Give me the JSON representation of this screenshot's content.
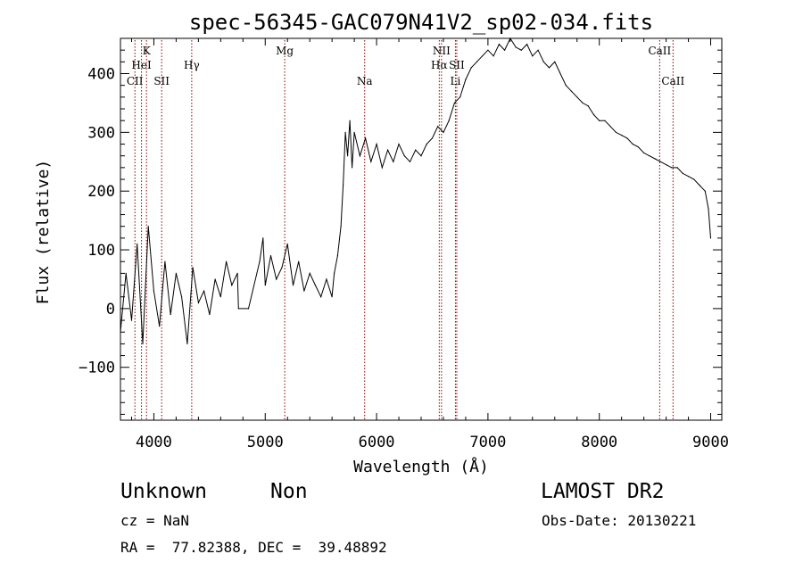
{
  "chart_data": {
    "type": "line",
    "title": "spec-56345-GAC079N41V2_sp02-034.fits",
    "xlabel": "Wavelength (Å)",
    "ylabel": "Flux (relative)",
    "xlim": [
      3700,
      9100
    ],
    "ylim": [
      -190,
      460
    ],
    "xticks": [
      4000,
      5000,
      6000,
      7000,
      8000,
      9000
    ],
    "yticks": [
      -100,
      0,
      100,
      200,
      300,
      400
    ],
    "grid": false,
    "series": [
      {
        "x": [
          3700,
          3750,
          3800,
          3850,
          3900,
          3950,
          4000,
          4050,
          4100,
          4150,
          4200,
          4250,
          4300,
          4350,
          4400,
          4450,
          4500,
          4550,
          4600,
          4650,
          4700,
          4750,
          4760,
          4850,
          4950,
          4980,
          5000,
          5050,
          5100,
          5150,
          5200,
          5250,
          5300,
          5350,
          5400,
          5450,
          5500,
          5550,
          5600,
          5620,
          5650,
          5680,
          5700,
          5720,
          5740,
          5760,
          5780,
          5800,
          5850,
          5900,
          5950,
          6000,
          6050,
          6100,
          6150,
          6200,
          6250,
          6300,
          6350,
          6400,
          6450,
          6500,
          6550,
          6600,
          6650,
          6700,
          6750,
          6800,
          6850,
          6900,
          6950,
          7000,
          7050,
          7100,
          7150,
          7200,
          7250,
          7300,
          7350,
          7400,
          7450,
          7500,
          7550,
          7600,
          7650,
          7700,
          7750,
          7800,
          7850,
          7900,
          7950,
          8000,
          8050,
          8100,
          8150,
          8200,
          8250,
          8300,
          8350,
          8400,
          8450,
          8500,
          8550,
          8600,
          8650,
          8700,
          8750,
          8800,
          8850,
          8900,
          8950,
          8980,
          9000
        ],
        "y": [
          -40,
          60,
          -20,
          110,
          -60,
          140,
          30,
          -30,
          80,
          -10,
          60,
          20,
          -60,
          70,
          10,
          30,
          -10,
          50,
          20,
          80,
          40,
          60,
          0,
          0,
          80,
          120,
          40,
          90,
          50,
          70,
          110,
          40,
          80,
          30,
          60,
          40,
          20,
          50,
          20,
          60,
          90,
          140,
          210,
          300,
          260,
          320,
          240,
          300,
          260,
          290,
          250,
          280,
          240,
          270,
          250,
          280,
          260,
          250,
          270,
          260,
          280,
          290,
          310,
          300,
          320,
          350,
          360,
          390,
          410,
          420,
          430,
          440,
          430,
          450,
          440,
          460,
          445,
          440,
          450,
          430,
          440,
          420,
          410,
          420,
          400,
          380,
          370,
          360,
          350,
          345,
          330,
          320,
          320,
          310,
          300,
          295,
          290,
          280,
          275,
          265,
          260,
          255,
          250,
          245,
          240,
          240,
          230,
          225,
          220,
          210,
          200,
          170,
          120
        ]
      }
    ],
    "lines": [
      {
        "label": "CII",
        "x": 3830,
        "row": 3
      },
      {
        "label": "HeI",
        "x": 3889,
        "row": 2
      },
      {
        "label": "K",
        "x": 3934,
        "row": 1
      },
      {
        "label": "SII",
        "x": 4070,
        "row": 3
      },
      {
        "label": "Hγ",
        "x": 4340,
        "row": 2
      },
      {
        "label": "Mg",
        "x": 5175,
        "row": 1
      },
      {
        "label": "Na",
        "x": 5893,
        "row": 3
      },
      {
        "label": "NII",
        "x": 6583,
        "row": 1
      },
      {
        "label": "Hα",
        "x": 6563,
        "row": 2
      },
      {
        "label": "SII",
        "x": 6720,
        "row": 2
      },
      {
        "label": "Li",
        "x": 6708,
        "row": 3
      },
      {
        "label": "CaII",
        "x": 8542,
        "row": 1
      },
      {
        "label": "CaII",
        "x": 8662,
        "row": 3
      }
    ]
  },
  "info": {
    "object_class": "Unknown",
    "object_subclass": "Non",
    "survey": "LAMOST DR2",
    "redshift": "cz = NaN",
    "obs_date": "Obs-Date: 20130221",
    "coords": "RA =  77.82388, DEC =  39.48892"
  }
}
